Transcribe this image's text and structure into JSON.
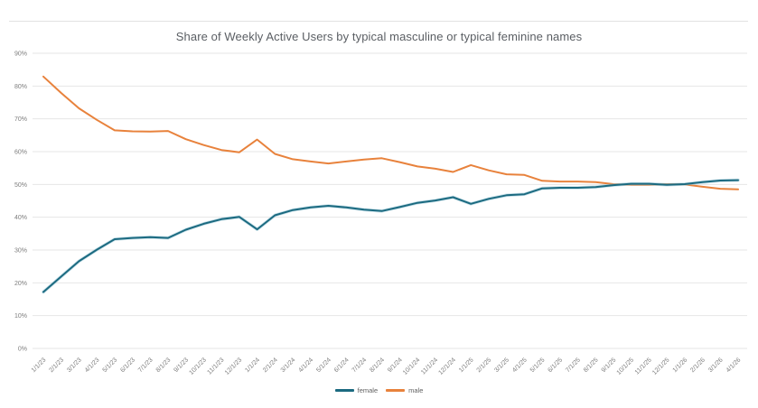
{
  "chart": {
    "title": "Share of Weekly Active Users by typical masculine or typical feminine names",
    "legend": {
      "female_label": "female",
      "male_label": "male"
    },
    "colors": {
      "female": "#1B6A80",
      "female_halo": "#8FC1D4",
      "male": "#E8823C",
      "gridline": "#E6E6E6",
      "axis_text": "#7d7d7d",
      "title_text": "#5a5e63"
    }
  },
  "chart_data": {
    "type": "line",
    "title": "Share of Weekly Active Users by typical masculine or typical feminine names",
    "xlabel": "",
    "ylabel": "",
    "ylim": [
      0,
      90
    ],
    "grid": true,
    "legend_position": "bottom",
    "y_ticks": [
      "0%",
      "10%",
      "20%",
      "30%",
      "40%",
      "50%",
      "60%",
      "70%",
      "80%",
      "90%"
    ],
    "x": [
      "1/1/23",
      "2/1/23",
      "3/1/23",
      "4/1/23",
      "5/1/23",
      "6/1/23",
      "7/1/23",
      "8/1/23",
      "9/1/23",
      "10/1/23",
      "11/1/23",
      "12/1/23",
      "1/1/24",
      "2/1/24",
      "3/1/24",
      "4/1/24",
      "5/1/24",
      "6/1/24",
      "7/1/24",
      "8/1/24",
      "9/1/24",
      "10/1/24",
      "11/1/24",
      "12/1/24",
      "1/1/25",
      "2/1/25",
      "3/1/25",
      "4/1/25",
      "5/1/25",
      "6/1/25",
      "7/1/25",
      "8/1/25",
      "9/1/25",
      "10/1/25",
      "11/1/25",
      "12/1/25",
      "1/1/26",
      "2/1/26",
      "3/1/26",
      "4/1/26"
    ],
    "series": [
      {
        "name": "female",
        "color": "#1B6A80",
        "values": [
          17.2,
          21.9,
          26.6,
          30.1,
          33.3,
          33.7,
          33.9,
          33.7,
          36.2,
          38.0,
          39.4,
          40.1,
          36.3,
          40.6,
          42.2,
          43.0,
          43.5,
          43.0,
          42.3,
          41.9,
          43.1,
          44.4,
          45.1,
          46.1,
          44.1,
          45.6,
          46.7,
          47.0,
          48.8,
          49.0,
          49.0,
          49.2,
          49.8,
          50.2,
          50.2,
          49.9,
          50.1,
          50.7,
          51.2,
          51.3
        ]
      },
      {
        "name": "male",
        "color": "#E8823C",
        "values": [
          82.9,
          77.9,
          73.2,
          69.7,
          66.5,
          66.2,
          66.1,
          66.3,
          63.8,
          62.0,
          60.5,
          59.8,
          63.7,
          59.3,
          57.7,
          57.0,
          56.4,
          57.0,
          57.6,
          58.0,
          56.8,
          55.5,
          54.8,
          53.8,
          55.9,
          54.3,
          53.1,
          52.9,
          51.1,
          50.9,
          50.9,
          50.7,
          50.1,
          49.9,
          49.9,
          50.1,
          50.0,
          49.3,
          48.7,
          48.5
        ]
      }
    ]
  }
}
